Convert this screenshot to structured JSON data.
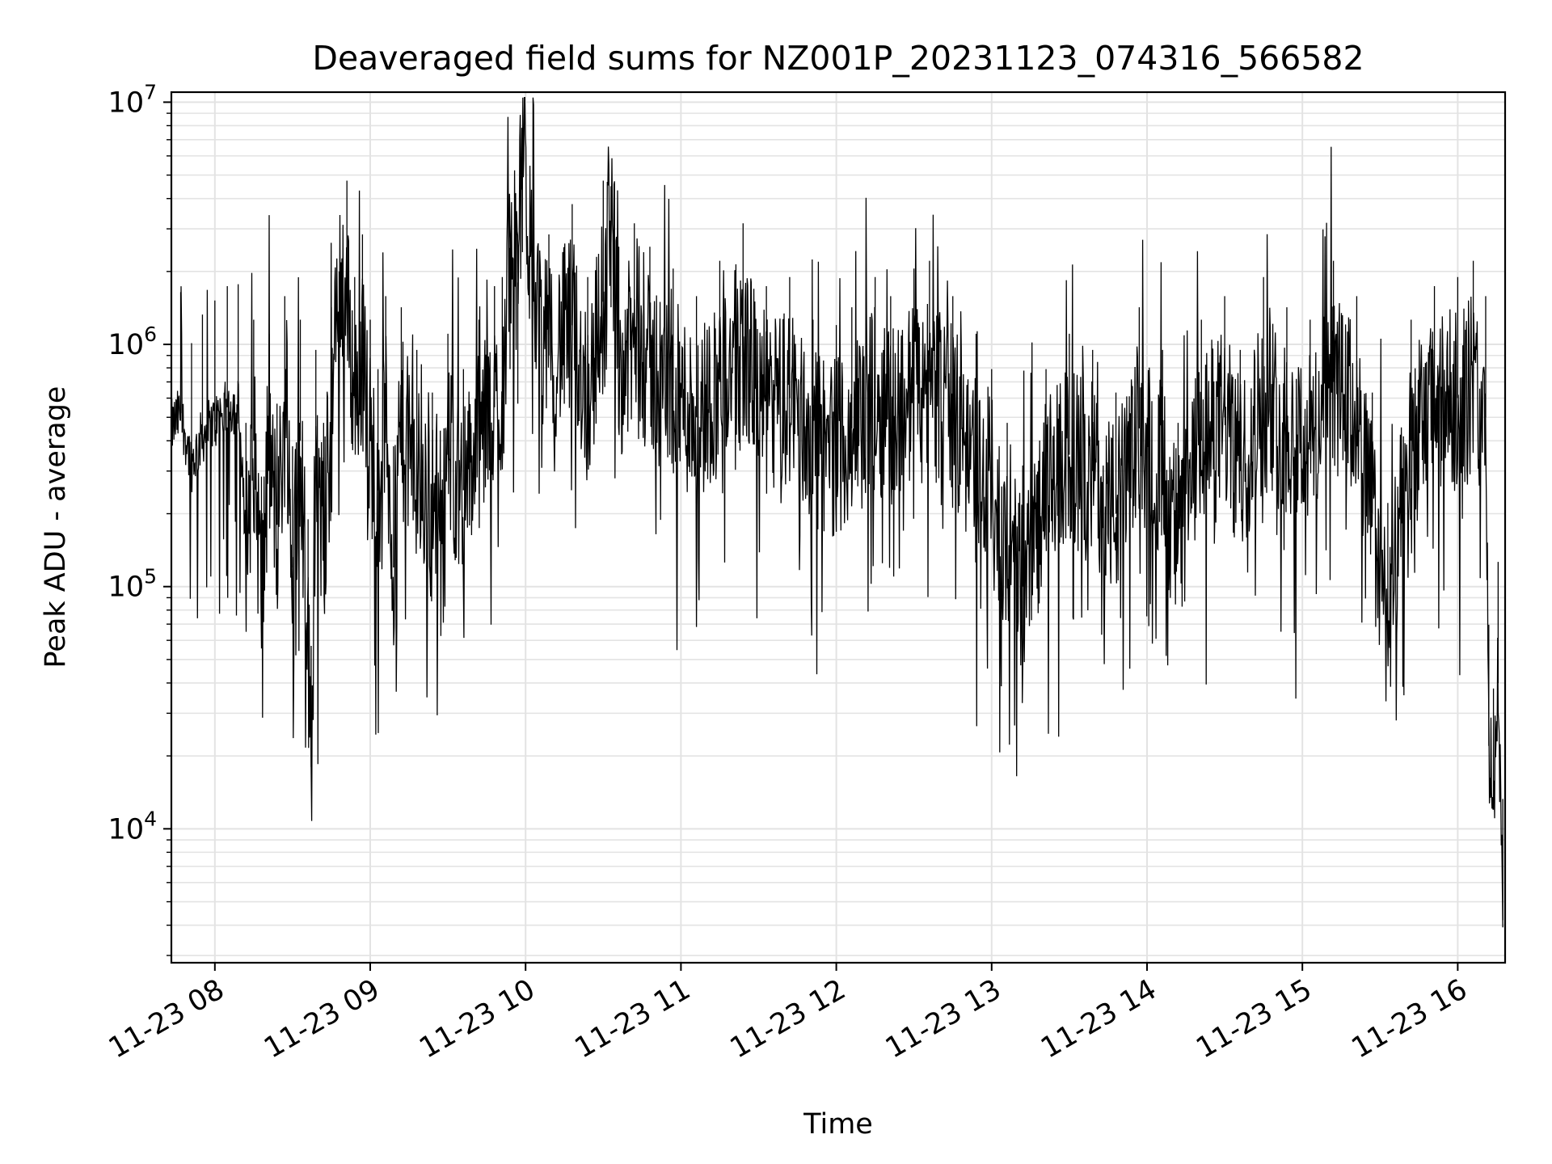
{
  "chart_data": {
    "type": "line",
    "title": "Deaveraged field sums for NZ001P_20231123_074316_566582",
    "xlabel": "Time",
    "ylabel": "Peak ADU - average",
    "yscale": "log",
    "xlim": [
      "11-23 07:43",
      "11-23 16:18"
    ],
    "ylim": [
      2800,
      11000000
    ],
    "x_ticks": [
      "11-23 08",
      "11-23 09",
      "11-23 10",
      "11-23 11",
      "11-23 12",
      "11-23 13",
      "11-23 14",
      "11-23 15",
      "11-23 16"
    ],
    "y_ticks": [
      {
        "base": "10",
        "exp": "4",
        "value": 10000
      },
      {
        "base": "10",
        "exp": "5",
        "value": 100000
      },
      {
        "base": "10",
        "exp": "6",
        "value": 1000000
      },
      {
        "base": "10",
        "exp": "7",
        "value": 10000000
      }
    ],
    "grid": true,
    "line_color": "#000000",
    "series": [
      {
        "x_hours": [
          7.72,
          7.78,
          7.85,
          7.92,
          8.0,
          8.08,
          8.15,
          8.2,
          8.25,
          8.3,
          8.35,
          8.4,
          8.45,
          8.5,
          8.55,
          8.6,
          8.62,
          8.65,
          8.7,
          8.75,
          8.8,
          8.85,
          8.9,
          8.95,
          9.0,
          9.05,
          9.1,
          9.15,
          9.2,
          9.3,
          9.4,
          9.5,
          9.6,
          9.7,
          9.8,
          9.85,
          9.9,
          9.95,
          9.98,
          10.05,
          10.15,
          10.3,
          10.4,
          10.5,
          10.55,
          10.6,
          10.7,
          10.8,
          10.95,
          11.1,
          11.25,
          11.4,
          11.55,
          11.7,
          11.85,
          12.0,
          12.1,
          12.25,
          12.35,
          12.5,
          12.6,
          12.75,
          12.9,
          13.0,
          13.1,
          13.2,
          13.35,
          13.5,
          13.65,
          13.8,
          13.95,
          14.1,
          14.2,
          14.35,
          14.5,
          14.6,
          14.75,
          14.9,
          15.05,
          15.2,
          15.35,
          15.45,
          15.55,
          15.7,
          15.85,
          16.0,
          16.1,
          16.18,
          16.2,
          16.23,
          16.26,
          16.29
        ],
        "y": [
          450000,
          520000,
          320000,
          420000,
          480000,
          550000,
          560000,
          150000,
          400000,
          90000,
          350000,
          180000,
          500000,
          120000,
          400000,
          60000,
          18000,
          300000,
          150000,
          450000,
          2000000,
          1500000,
          600000,
          900000,
          400000,
          250000,
          500000,
          120000,
          450000,
          300000,
          200000,
          350000,
          250000,
          400000,
          550000,
          600000,
          2500000,
          1800000,
          7600000,
          1500000,
          900000,
          1200000,
          600000,
          1500000,
          4500000,
          800000,
          1000000,
          800000,
          650000,
          500000,
          700000,
          1000000,
          550000,
          600000,
          400000,
          380000,
          450000,
          600000,
          500000,
          650000,
          700000,
          500000,
          350000,
          250000,
          150000,
          100000,
          250000,
          350000,
          300000,
          200000,
          450000,
          300000,
          150000,
          400000,
          500000,
          300000,
          600000,
          450000,
          400000,
          700000,
          500000,
          200000,
          70000,
          400000,
          550000,
          600000,
          700000,
          500000,
          22000,
          12000,
          40000,
          4200
        ]
      }
    ]
  }
}
